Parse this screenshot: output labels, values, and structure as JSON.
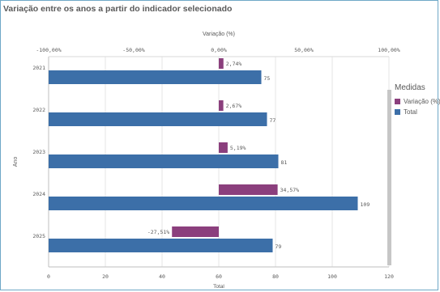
{
  "title": "Variação entre os anos a partir do indicador selecionado",
  "legend": {
    "title": "Medidas",
    "items": [
      {
        "label": "Variação (%)",
        "color": "#8b3f7d"
      },
      {
        "label": "Total",
        "color": "#3c6fa8"
      }
    ]
  },
  "chart_data": {
    "type": "bar",
    "orientation": "horizontal",
    "categories": [
      "2021",
      "2022",
      "2023",
      "2024",
      "2025"
    ],
    "ylabel": "Ano",
    "series": [
      {
        "name": "Variação (%)",
        "axis": "top",
        "color": "#8b3f7d",
        "values": [
          2.74,
          2.67,
          5.19,
          34.57,
          -27.51
        ],
        "labels": [
          "2,74%",
          "2,67%",
          "5,19%",
          "34,57%",
          "-27,51%"
        ]
      },
      {
        "name": "Total",
        "axis": "bottom",
        "color": "#3c6fa8",
        "values": [
          75,
          77,
          81,
          109,
          79
        ],
        "labels": [
          "75",
          "77",
          "81",
          "109",
          "79"
        ]
      }
    ],
    "top_axis": {
      "label": "Variação (%)",
      "range": [
        -100,
        100
      ],
      "ticks": [
        -100,
        -50,
        0,
        50,
        100
      ],
      "tick_labels": [
        "-100,00%",
        "-50,00%",
        "0,00%",
        "50,00%",
        "100,00%"
      ]
    },
    "bottom_axis": {
      "label": "Total",
      "range": [
        0,
        120
      ],
      "ticks": [
        0,
        20,
        40,
        60,
        80,
        100,
        120
      ],
      "tick_labels": [
        "0",
        "20",
        "40",
        "60",
        "80",
        "100",
        "120"
      ]
    },
    "grid": true,
    "legend_position": "right"
  }
}
